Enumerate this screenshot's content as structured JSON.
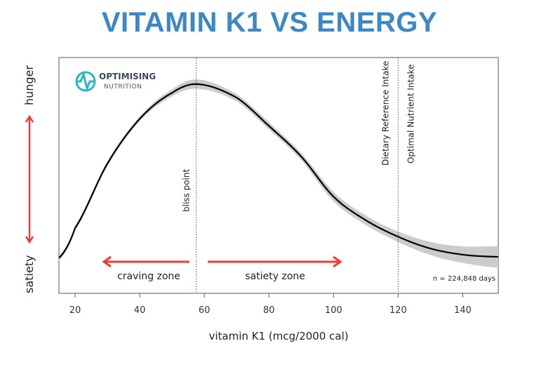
{
  "title": "VITAMIN K1 VS ENERGY",
  "logo": {
    "line1": "OPTIMISING",
    "line2": "NUTRITION",
    "color": "#2bb5bf"
  },
  "chart_data": {
    "type": "line",
    "title": "VITAMIN K1 VS ENERGY",
    "xlabel": "vitamin K1 (mcg/2000 cal)",
    "ylabel_top": "hunger",
    "ylabel_bottom": "satiety",
    "xlim": [
      15,
      151
    ],
    "ylim": [
      0,
      100
    ],
    "x_ticks": [
      20,
      40,
      60,
      80,
      100,
      120,
      140
    ],
    "grid": false,
    "series": [
      {
        "x": [
          15,
          20,
          30,
          40,
          50,
          58,
          70,
          80,
          90,
          100,
          110,
          120,
          130,
          140,
          150
        ],
        "y": [
          15,
          27.7,
          55,
          74,
          85,
          88.7,
          83,
          71,
          58,
          41,
          31,
          24,
          19,
          16.4,
          15.5
        ],
        "band_halfwidth": [
          1,
          1,
          1,
          1,
          1.5,
          2,
          1.5,
          1.5,
          1.5,
          2,
          2,
          2.2,
          2.8,
          3.5,
          4.5
        ],
        "color": "#000000",
        "band_color": "#cccccc"
      }
    ],
    "vlines": [
      {
        "x": 57.5,
        "label": "bliss point"
      },
      {
        "x": 120,
        "label": "Dietary Reference Intake"
      },
      {
        "x": 120,
        "label": "Optimal Nutrient Intake"
      }
    ],
    "annotations": {
      "craving": "craving zone",
      "satiety": "satiety zone",
      "n": "n = 224,848 days"
    },
    "arrow_color": "#f03a3a"
  }
}
